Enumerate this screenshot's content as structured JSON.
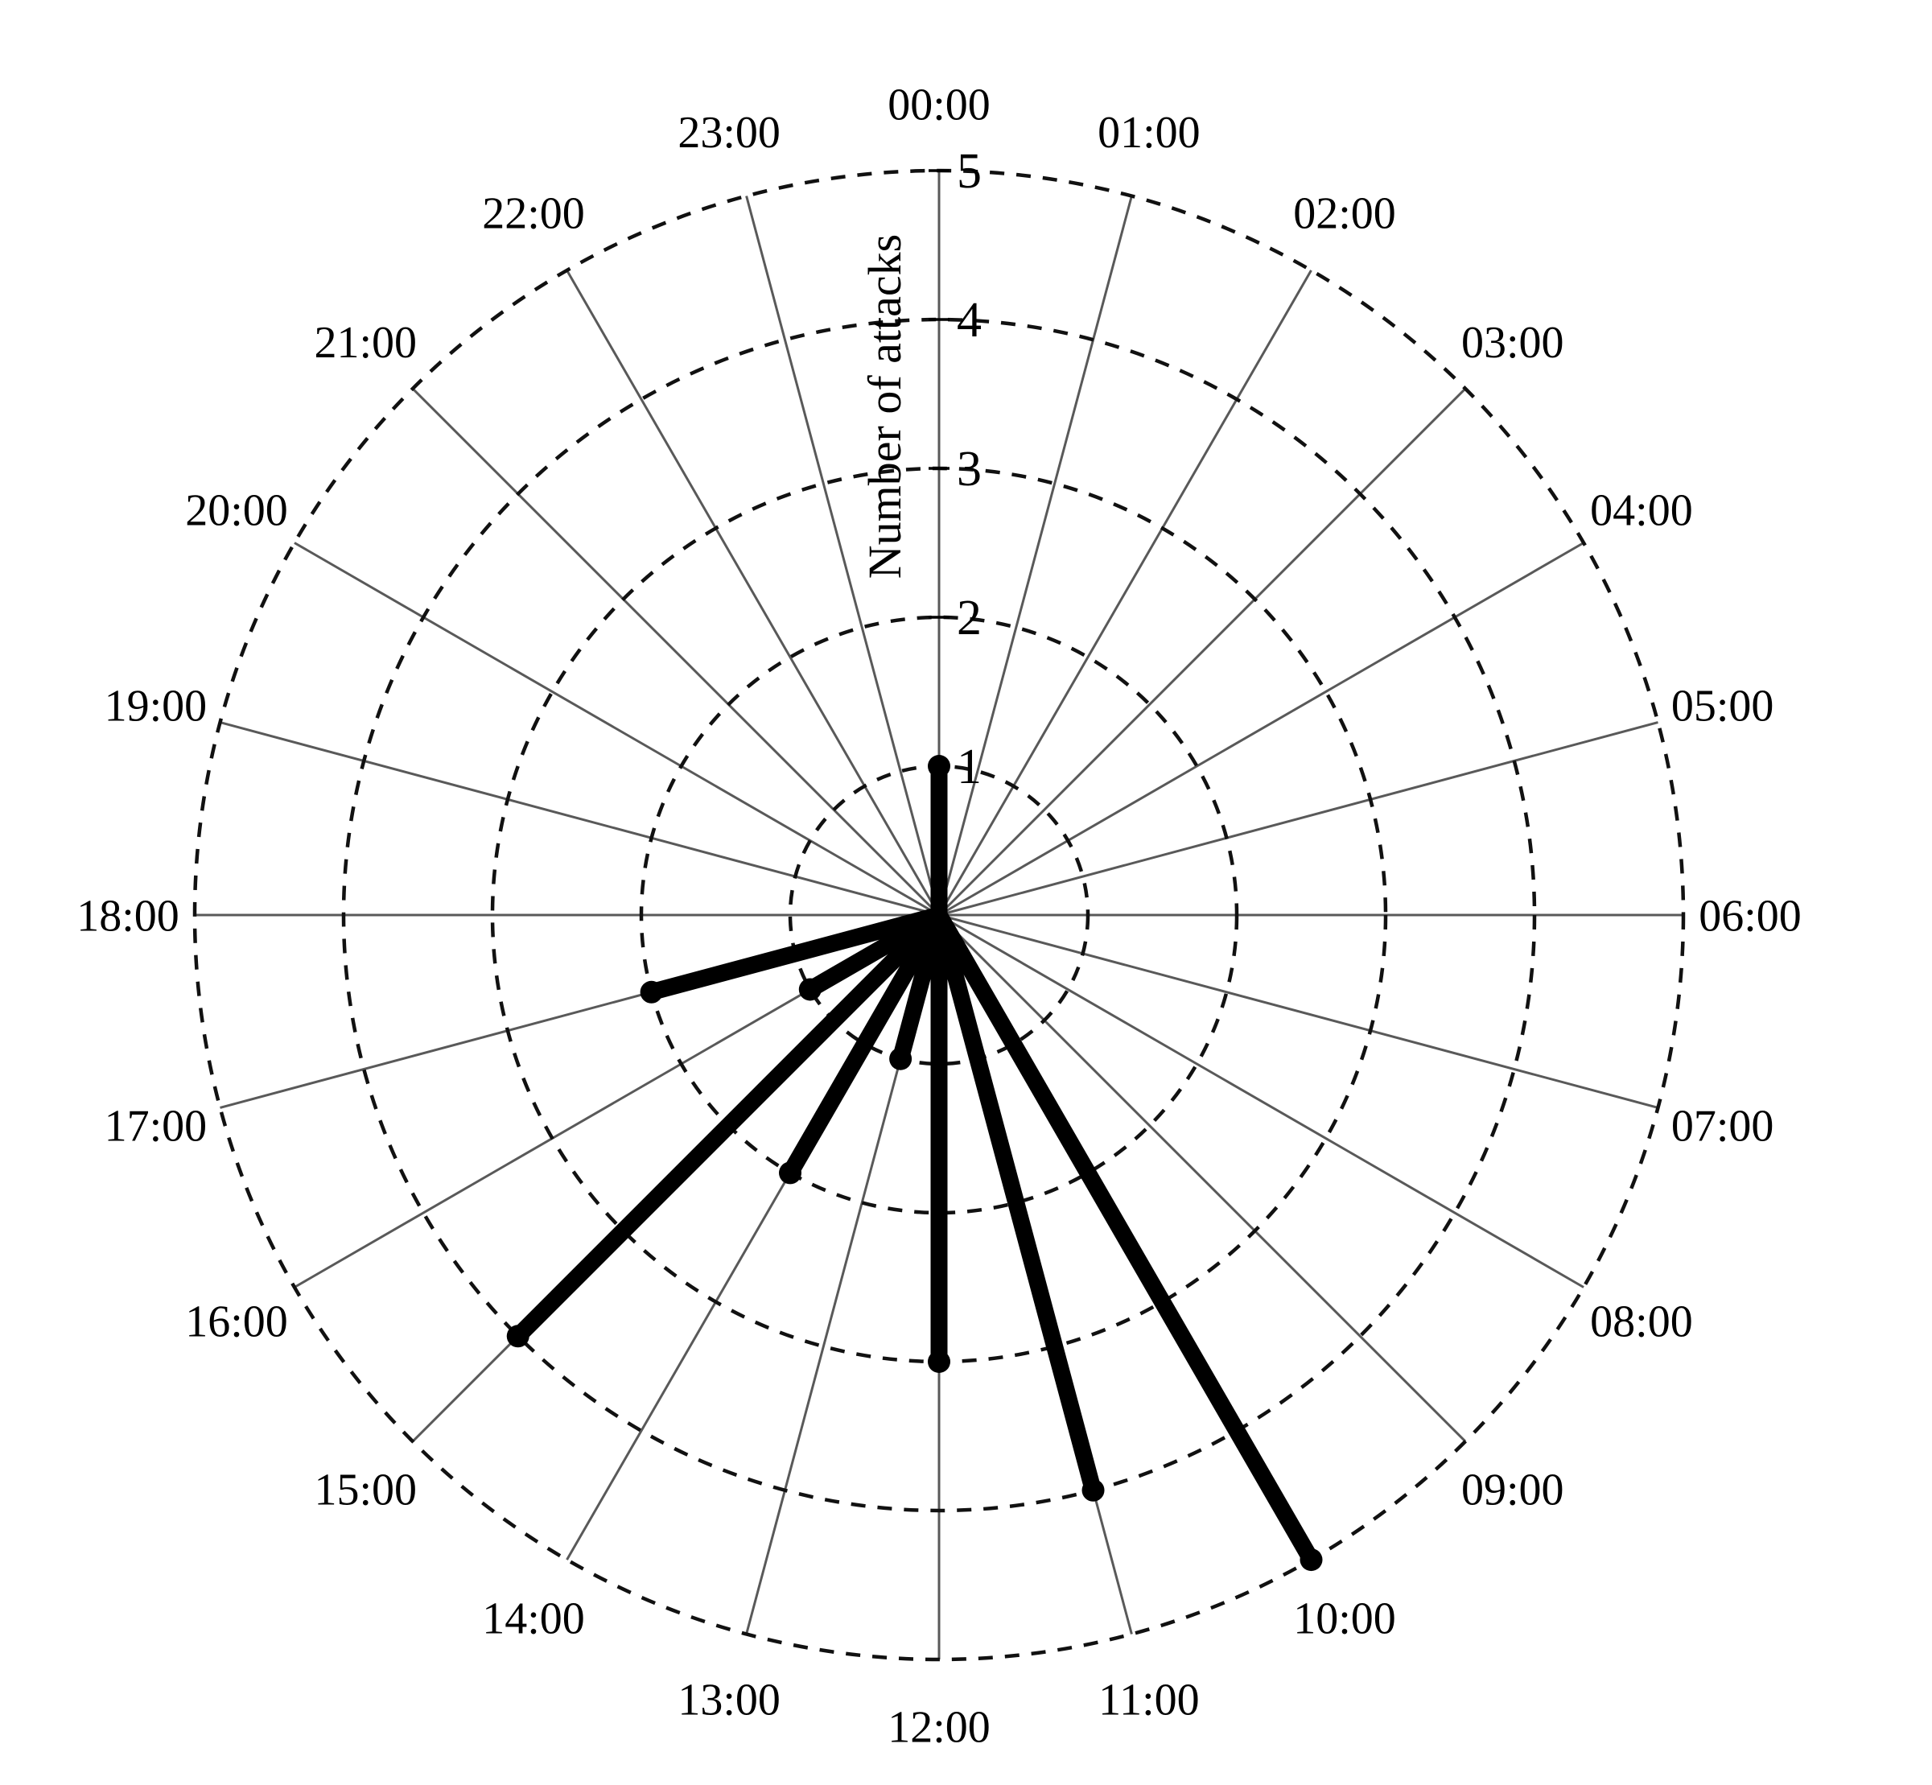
{
  "chart_data": {
    "type": "bar",
    "subtype": "polar-stem",
    "title": "",
    "xlabel": "",
    "ylabel": "Number of attacks",
    "categories": [
      "00:00",
      "01:00",
      "02:00",
      "03:00",
      "04:00",
      "05:00",
      "06:00",
      "07:00",
      "08:00",
      "09:00",
      "10:00",
      "11:00",
      "12:00",
      "13:00",
      "14:00",
      "15:00",
      "16:00",
      "17:00",
      "18:00",
      "19:00",
      "20:00",
      "21:00",
      "22:00",
      "23:00"
    ],
    "values": [
      1,
      0,
      0,
      0,
      0,
      0,
      0,
      0,
      0,
      0,
      5,
      4,
      3,
      1,
      2,
      4,
      1,
      2,
      0,
      0,
      0,
      0,
      0,
      0
    ],
    "rlim": [
      0,
      5
    ],
    "r_ticks": [
      1,
      2,
      3,
      4,
      5
    ],
    "angle_origin": "top",
    "direction": "clockwise",
    "grid": {
      "circles": "dashed",
      "spokes": "solid"
    },
    "marker": "filled-circle",
    "colors": {
      "data": "#000000",
      "spokes": "#595959",
      "grid_circles": "#111111",
      "axis_ticks": "#000000",
      "text": "#000000",
      "background": "#ffffff"
    }
  }
}
